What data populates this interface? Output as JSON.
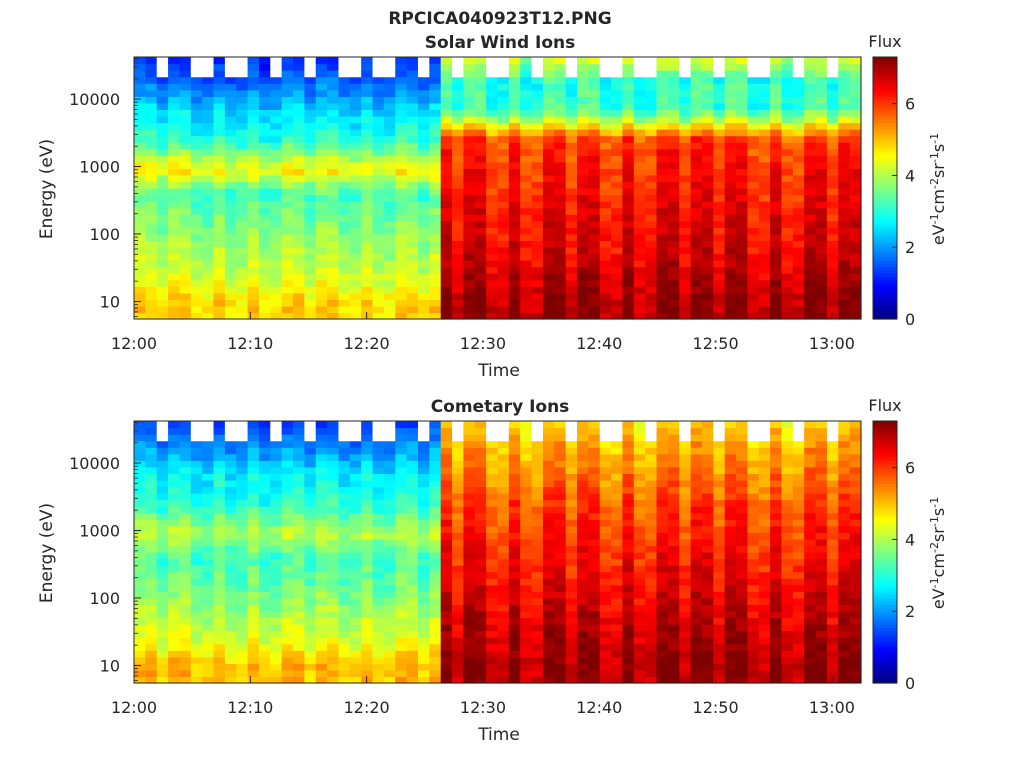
{
  "figure": {
    "title": "RPCICA040923T12.PNG"
  },
  "colors": {
    "jet_stops": [
      "#00007f",
      "#0000ff",
      "#0080ff",
      "#00ffff",
      "#80ff80",
      "#ffff00",
      "#ff8000",
      "#ff0000",
      "#7f0000"
    ],
    "axis": "#262626",
    "background": "#ffffff"
  },
  "chart_data": [
    {
      "type": "heatmap",
      "title": "Solar Wind Ions",
      "xlabel": "Time",
      "ylabel": "Energy (eV)",
      "x_ticks": [
        "12:00",
        "12:10",
        "12:20",
        "12:30",
        "12:40",
        "12:50",
        "13:00"
      ],
      "x_range_minutes": [
        0,
        62.5
      ],
      "y_scale": "log",
      "y_ticks": [
        "10",
        "100",
        "1000",
        "10000"
      ],
      "y_range": [
        5.5,
        42000
      ],
      "colorbar": {
        "label_top": "Flux",
        "label": "eV-1cm-2sr-1s-1",
        "ticks": [
          "0",
          "2",
          "4",
          "6"
        ],
        "range": [
          0,
          7.3
        ]
      },
      "time_boundary_minutes": 26,
      "sweep_period_minutes": 3.2,
      "flux_profile": {
        "energies_eV": [
          10,
          25,
          60,
          150,
          400,
          900,
          2500,
          7000,
          20000,
          40000
        ],
        "before": [
          4.8,
          4.2,
          3.9,
          3.6,
          3.2,
          4.6,
          3.0,
          2.4,
          1.5,
          1.0
        ],
        "after": [
          7.0,
          6.7,
          6.5,
          6.4,
          6.2,
          6.1,
          5.9,
          3.1,
          3.0,
          4.0
        ]
      }
    },
    {
      "type": "heatmap",
      "title": "Cometary Ions",
      "xlabel": "Time",
      "ylabel": "Energy (eV)",
      "x_ticks": [
        "12:00",
        "12:10",
        "12:20",
        "12:30",
        "12:40",
        "12:50",
        "13:00"
      ],
      "x_range_minutes": [
        0,
        62.5
      ],
      "y_scale": "log",
      "y_ticks": [
        "10",
        "100",
        "1000",
        "10000"
      ],
      "y_range": [
        5.5,
        42000
      ],
      "colorbar": {
        "label_top": "Flux",
        "label": "eV-1cm-2sr-1s-1",
        "ticks": [
          "0",
          "2",
          "4",
          "6"
        ],
        "range": [
          0,
          7.3
        ]
      },
      "time_boundary_minutes": 26,
      "sweep_period_minutes": 3.2,
      "flux_profile": {
        "energies_eV": [
          10,
          25,
          60,
          150,
          400,
          900,
          2500,
          7000,
          20000,
          40000
        ],
        "before": [
          5.0,
          4.3,
          3.9,
          3.5,
          3.2,
          4.0,
          3.0,
          2.6,
          1.8,
          1.1
        ],
        "after": [
          7.0,
          6.8,
          6.6,
          6.4,
          6.2,
          6.0,
          5.8,
          5.4,
          5.0,
          4.6
        ]
      }
    }
  ]
}
